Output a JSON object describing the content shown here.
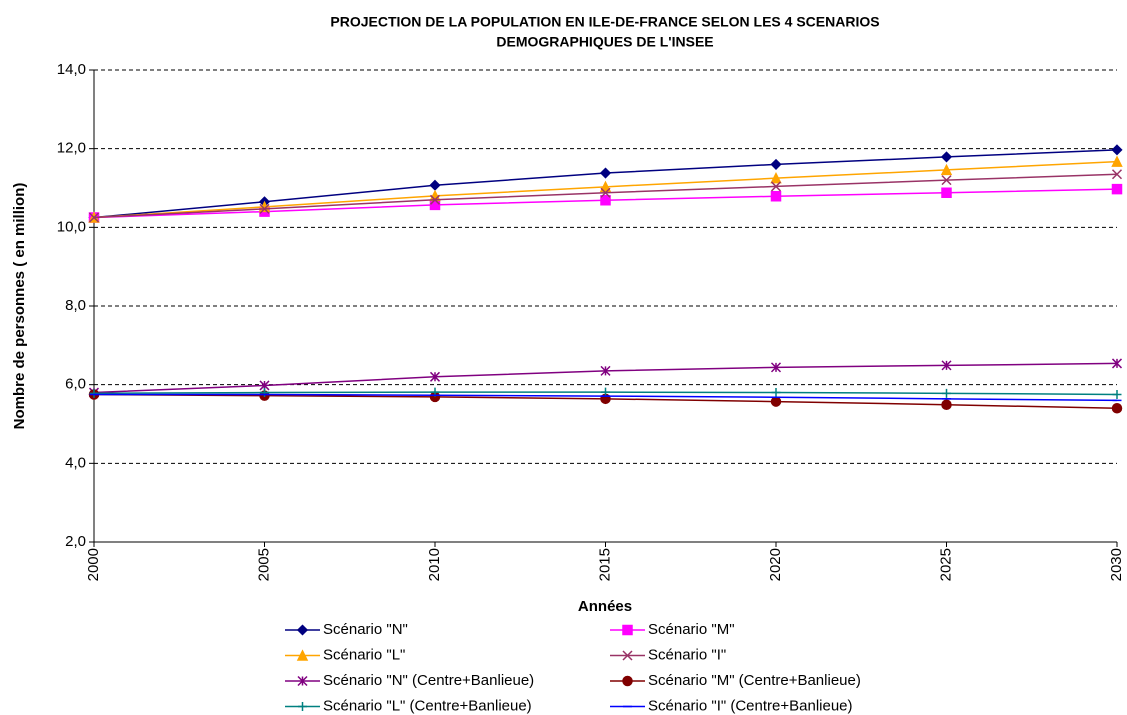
{
  "chart_data": {
    "type": "line",
    "title": [
      "PROJECTION DE LA POPULATION EN ILE-DE-FRANCE SELON LES 4 SCENARIOS",
      "DEMOGRAPHIQUES DE L'INSEE"
    ],
    "x_label": "Années",
    "y_label": "Nombre de personnes ( en million)",
    "x": [
      2000,
      2005,
      2010,
      2015,
      2020,
      2025,
      2030
    ],
    "xlim": [
      2000,
      2030
    ],
    "xticks": [
      2000,
      2005,
      2010,
      2015,
      2020,
      2025,
      2030
    ],
    "ylim": [
      2,
      14
    ],
    "yticks": [
      {
        "value": 2,
        "label": "2,0"
      },
      {
        "value": 4,
        "label": "4,0"
      },
      {
        "value": 6,
        "label": "6,0"
      },
      {
        "value": 8,
        "label": "8,0"
      },
      {
        "value": 10,
        "label": "10,0"
      },
      {
        "value": 12,
        "label": "12,0"
      },
      {
        "value": 14,
        "label": "14,0"
      }
    ],
    "grid": true,
    "legend": "bottom",
    "series": [
      {
        "name": "Scénario \"N\"",
        "color": "#000080",
        "marker": "diamond",
        "values": [
          10.25,
          10.65,
          11.07,
          11.38,
          11.6,
          11.79,
          11.97
        ]
      },
      {
        "name": "Scénario \"M\"",
        "color": "#ff00ff",
        "marker": "square",
        "values": [
          10.25,
          10.4,
          10.57,
          10.69,
          10.79,
          10.88,
          10.97
        ]
      },
      {
        "name": "Scénario \"L\"",
        "color": "#ffa500",
        "marker": "triangle",
        "values": [
          10.25,
          10.52,
          10.8,
          11.03,
          11.25,
          11.46,
          11.67
        ]
      },
      {
        "name": "Scénario \"I\"",
        "color": "#993366",
        "marker": "x",
        "values": [
          10.25,
          10.47,
          10.7,
          10.88,
          11.04,
          11.2,
          11.35
        ]
      },
      {
        "name": "Scénario \"N\" (Centre+Banlieue)",
        "color": "#800080",
        "marker": "star",
        "values": [
          5.8,
          5.98,
          6.2,
          6.35,
          6.44,
          6.49,
          6.54
        ]
      },
      {
        "name": "Scénario \"M\" (Centre+Banlieue)",
        "color": "#800000",
        "marker": "circle",
        "values": [
          5.75,
          5.72,
          5.69,
          5.64,
          5.57,
          5.49,
          5.4
        ]
      },
      {
        "name": "Scénario \"L\" (Centre+Banlieue)",
        "color": "#008080",
        "marker": "plus",
        "values": [
          5.78,
          5.8,
          5.81,
          5.81,
          5.8,
          5.78,
          5.75
        ]
      },
      {
        "name": "Scénario \"I\" (Centre+Banlieue)",
        "color": "#0000ff",
        "marker": "dash",
        "values": [
          5.75,
          5.75,
          5.73,
          5.71,
          5.68,
          5.64,
          5.6
        ]
      }
    ]
  }
}
